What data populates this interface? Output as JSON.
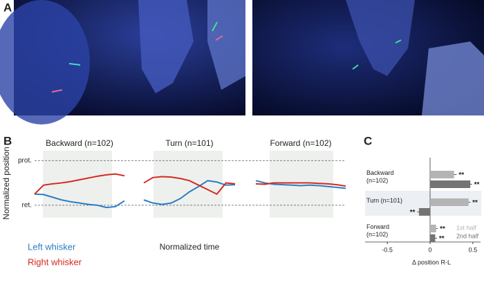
{
  "panels": {
    "a": "A",
    "b": "B",
    "c": "C"
  },
  "chart_data": [
    {
      "type": "line",
      "title": "Backward (n=102)",
      "y_label": "Normalized position",
      "x": [
        0,
        0.1,
        0.2,
        0.3,
        0.4,
        0.5,
        0.6,
        0.7,
        0.8,
        0.9,
        1
      ],
      "xlim": [
        0,
        1
      ],
      "ylim": [
        -0.28,
        1.22
      ],
      "yticks": [
        {
          "value": 1,
          "label": "prot."
        },
        {
          "value": 0,
          "label": "ret."
        }
      ],
      "series": [
        {
          "name": "Left whisker",
          "color": "#2a7ec4",
          "values": [
            0.25,
            0.24,
            0.18,
            0.12,
            0.08,
            0.05,
            0.02,
            0,
            -0.05,
            -0.03,
            0.1
          ]
        },
        {
          "name": "Right whisker",
          "color": "#d42a20",
          "values": [
            0.25,
            0.45,
            0.48,
            0.5,
            0.53,
            0.57,
            0.61,
            0.65,
            0.68,
            0.7,
            0.66
          ]
        }
      ]
    },
    {
      "type": "line",
      "title": "Turn (n=101)",
      "x_label": "Normalized time",
      "x": [
        0,
        0.1,
        0.2,
        0.3,
        0.4,
        0.5,
        0.6,
        0.7,
        0.8,
        0.9,
        1
      ],
      "xlim": [
        0,
        1
      ],
      "ylim": [
        -0.28,
        1.22
      ],
      "series": [
        {
          "color": "#2a7ec4",
          "values": [
            0.12,
            0.05,
            0.02,
            0.05,
            0.15,
            0.3,
            0.42,
            0.55,
            0.52,
            0.45,
            0.46
          ]
        },
        {
          "color": "#d42a20",
          "values": [
            0.5,
            0.62,
            0.64,
            0.63,
            0.6,
            0.55,
            0.45,
            0.35,
            0.25,
            0.5,
            0.48
          ]
        }
      ]
    },
    {
      "type": "line",
      "title": "Forward (n=102)",
      "x": [
        0,
        0.1,
        0.2,
        0.3,
        0.4,
        0.5,
        0.6,
        0.7,
        0.8,
        0.9,
        1
      ],
      "xlim": [
        0,
        1
      ],
      "ylim": [
        -0.28,
        1.22
      ],
      "series": [
        {
          "color": "#2a7ec4",
          "values": [
            0.55,
            0.5,
            0.47,
            0.46,
            0.45,
            0.44,
            0.45,
            0.44,
            0.42,
            0.4,
            0.38
          ]
        },
        {
          "color": "#d42a20",
          "values": [
            0.48,
            0.47,
            0.5,
            0.5,
            0.5,
            0.5,
            0.5,
            0.49,
            0.48,
            0.46,
            0.43
          ]
        }
      ]
    },
    {
      "type": "hbar",
      "x_label": "Δ position R-L",
      "categories": [
        "Backward (n=102)",
        "Turn (n=101)",
        "Forward (n=102)"
      ],
      "xlim": [
        -0.76,
        0.59
      ],
      "xticks": [
        -0.5,
        0,
        0.5
      ],
      "series": [
        {
          "name": "1st half",
          "color": "#b4b4b4",
          "values": [
            0.28,
            0.45,
            0.07
          ],
          "errors": [
            0.03,
            0.02,
            0.02
          ],
          "significance": [
            "**",
            "**",
            "**"
          ]
        },
        {
          "name": "2nd half",
          "color": "#747474",
          "values": [
            0.47,
            -0.13,
            0.06
          ],
          "errors": [
            0.02,
            0.02,
            0.02
          ],
          "significance": [
            "**",
            "**",
            "**"
          ]
        }
      ]
    }
  ]
}
